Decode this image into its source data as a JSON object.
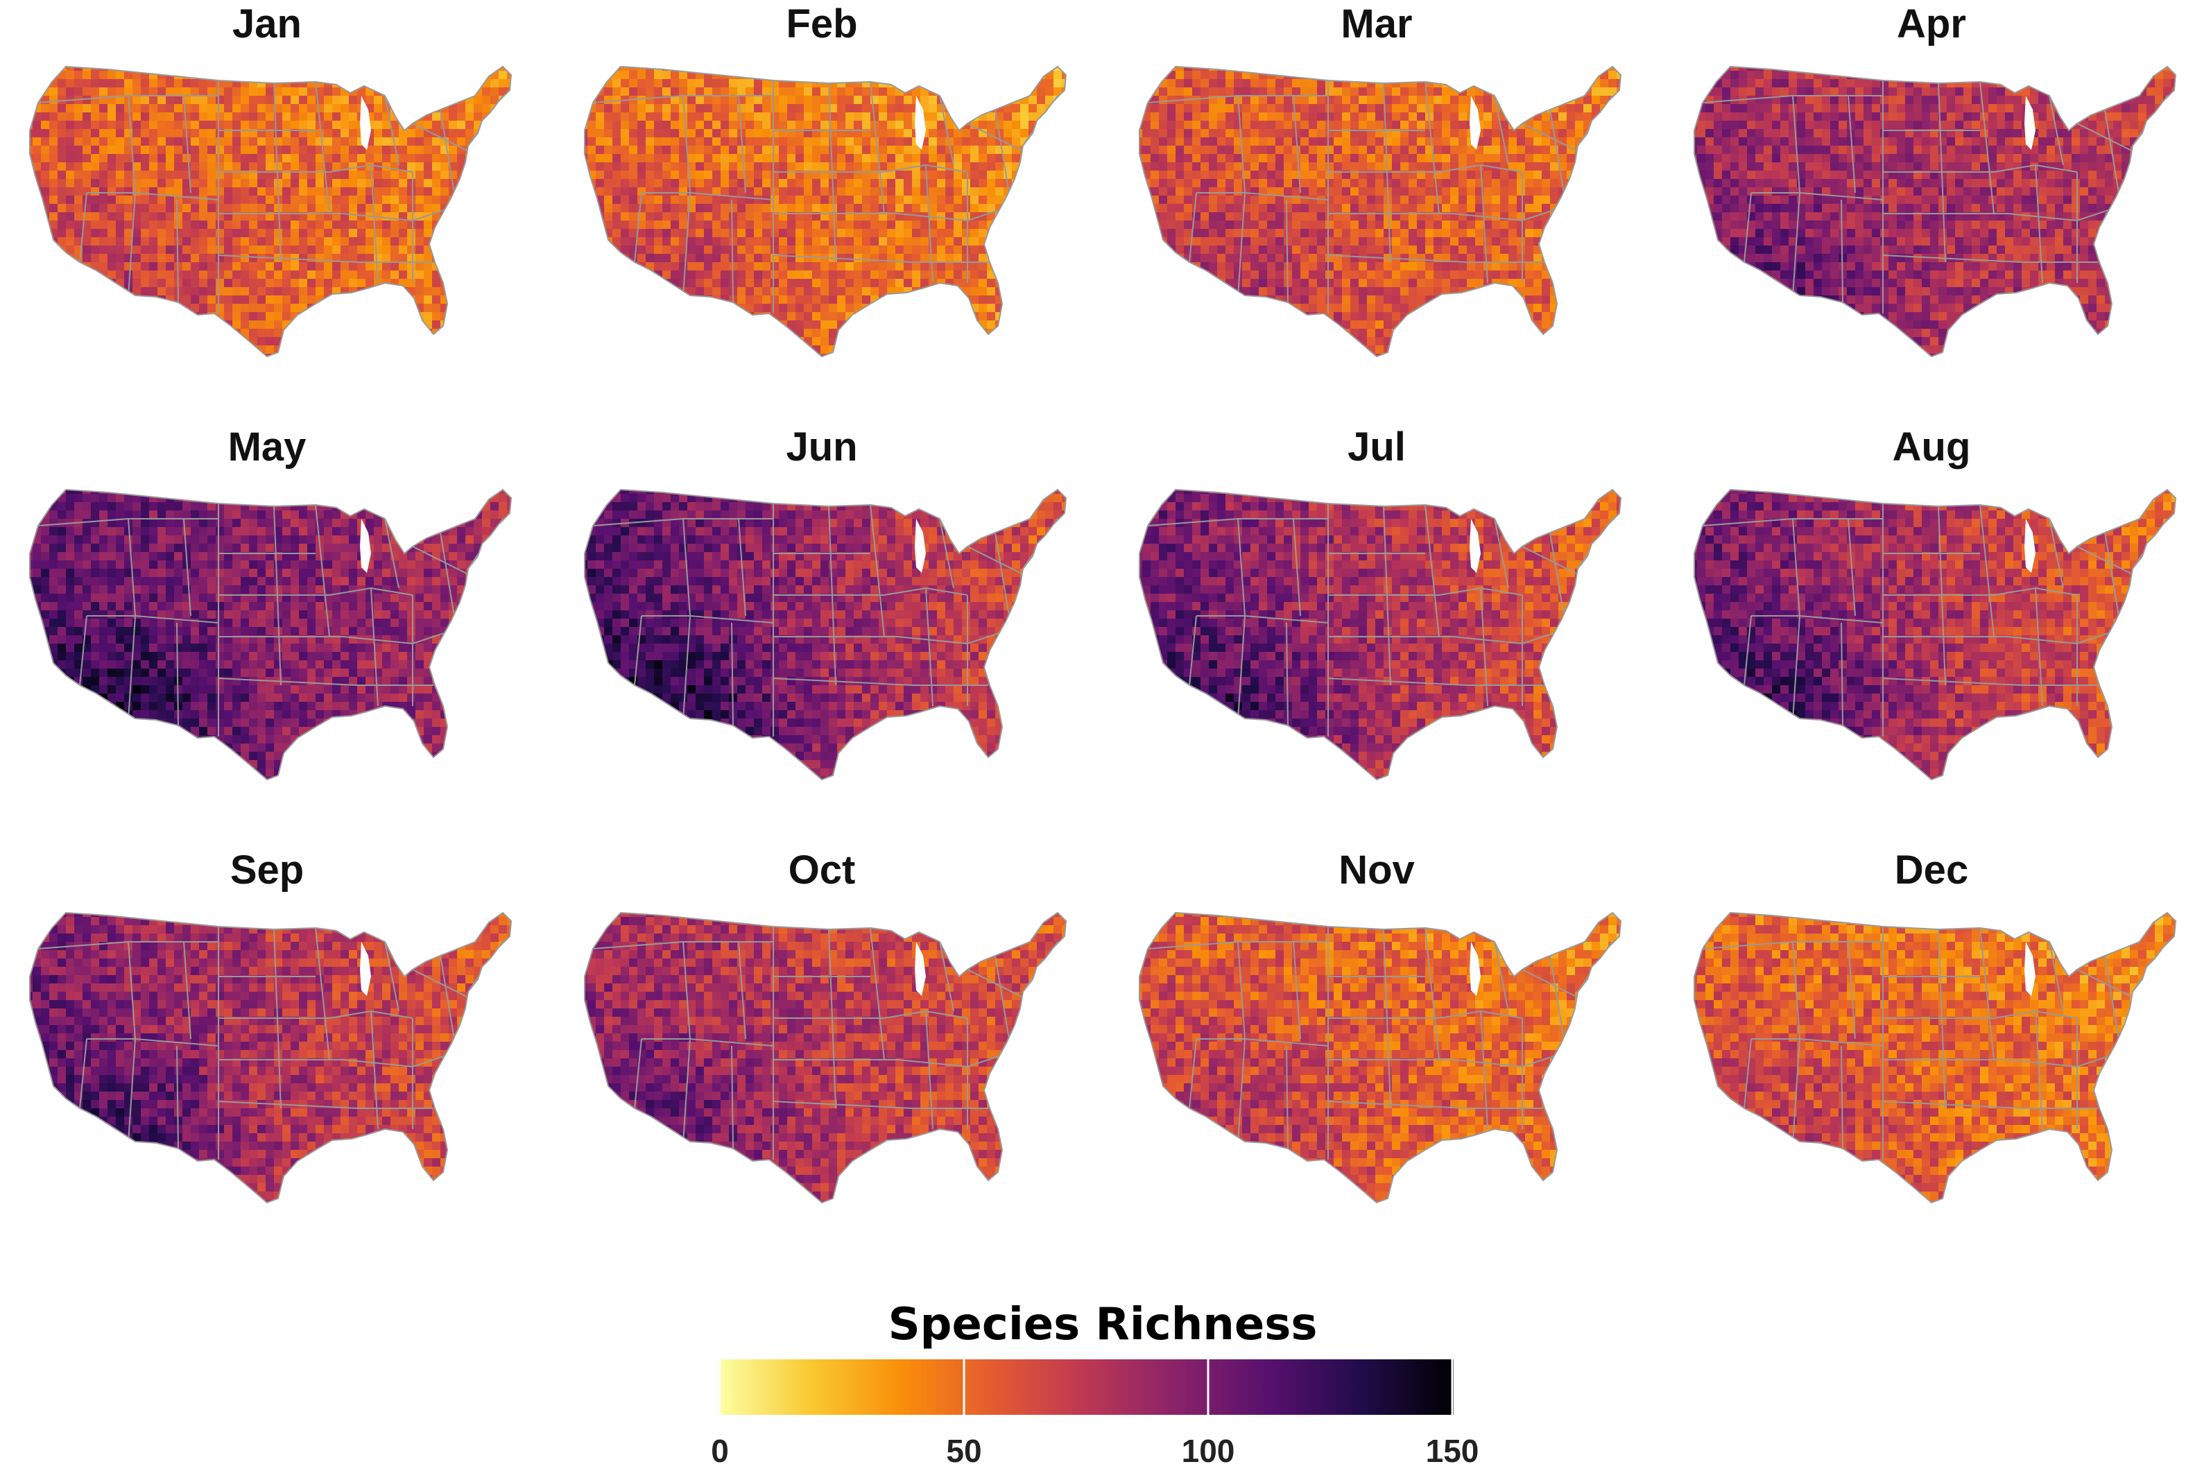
{
  "chart_data": {
    "type": "heatmap",
    "description_kind": "choropleth small multiples",
    "panels": [
      {
        "title": "Jan",
        "level_west": 0.42,
        "level_east": 0.3
      },
      {
        "title": "Feb",
        "level_west": 0.4,
        "level_east": 0.28
      },
      {
        "title": "Mar",
        "level_west": 0.45,
        "level_east": 0.33
      },
      {
        "title": "Apr",
        "level_west": 0.6,
        "level_east": 0.5
      },
      {
        "title": "May",
        "level_west": 0.75,
        "level_east": 0.55
      },
      {
        "title": "Jun",
        "level_west": 0.78,
        "level_east": 0.4
      },
      {
        "title": "Jul",
        "level_west": 0.72,
        "level_east": 0.36
      },
      {
        "title": "Aug",
        "level_west": 0.72,
        "level_east": 0.34
      },
      {
        "title": "Sep",
        "level_west": 0.7,
        "level_east": 0.38
      },
      {
        "title": "Oct",
        "level_west": 0.62,
        "level_east": 0.4
      },
      {
        "title": "Nov",
        "level_west": 0.45,
        "level_east": 0.32
      },
      {
        "title": "Dec",
        "level_west": 0.42,
        "level_east": 0.3
      }
    ],
    "legend": {
      "title": "Species Richness",
      "min": 0,
      "max": 150,
      "ticks": [
        "0",
        "50",
        "100",
        "150"
      ],
      "tick_values": [
        0,
        50,
        100,
        150
      ]
    },
    "palette": [
      "#fcffa4",
      "#f9c932",
      "#f98e09",
      "#e45a31",
      "#bc3754",
      "#89226a",
      "#57106e",
      "#210c4a",
      "#000004"
    ],
    "border_color": "#999999"
  }
}
